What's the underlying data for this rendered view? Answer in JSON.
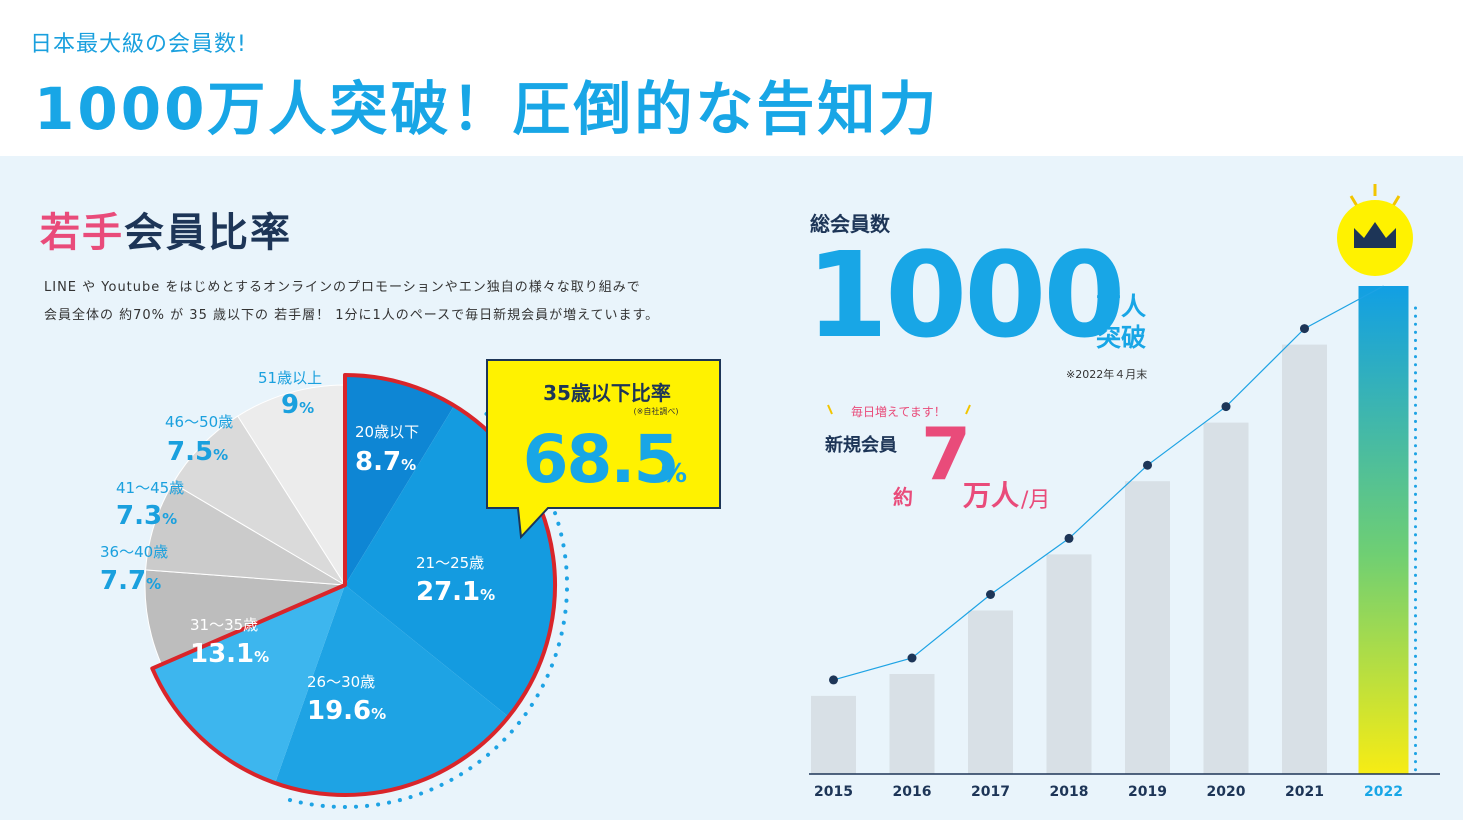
{
  "header": {
    "subtitle": "日本最大級の会員数!",
    "title": "1000万人突破！圧倒的な告知力"
  },
  "young": {
    "title_accent": "若手",
    "title_rest": "会員比率",
    "description_line1": "LINE や Youtube をはじめとするオンラインのプロモーションやエン独自の様々な取り組みで",
    "description_line2": "会員全体の 約70% が 35 歳以下の 若手層！ 1分に1人のペースで毎日新規会員が増えています。",
    "callout_label": "35歳以下比率",
    "callout_note": "(※自社調べ)",
    "callout_value": "68.5",
    "callout_unit": "%"
  },
  "total": {
    "label": "総会員数",
    "big_number": "1000",
    "unit_line1": "万人",
    "unit_line2": "突破",
    "note": "※2022年４月末",
    "daily_label": "毎日増えてます！",
    "new_label": "新規会員",
    "approx": "約",
    "new_number": "7",
    "new_unit": "万人",
    "new_per": "/月"
  },
  "colors": {
    "accent_blue": "#18a6e6",
    "accent_pink": "#e94b7a",
    "navy": "#1d3557",
    "callout_yellow": "#fff200",
    "outline_red": "#d9252a"
  },
  "chart_data": [
    {
      "type": "pie",
      "unit": "%",
      "slices": [
        {
          "label": "20歳以下",
          "value": 8.7,
          "value_text": "8.7",
          "color": "#0e86d4"
        },
        {
          "label": "21〜25歳",
          "value": 27.1,
          "value_text": "27.1",
          "color": "#149be0"
        },
        {
          "label": "26〜30歳",
          "value": 19.6,
          "value_text": "19.6",
          "color": "#1ea3e4"
        },
        {
          "label": "31〜35歳",
          "value": 13.1,
          "value_text": "13.1",
          "color": "#3db6ee"
        },
        {
          "label": "36〜40歳",
          "value": 7.7,
          "value_text": "7.7",
          "color": "#bdbdbd"
        },
        {
          "label": "41〜45歳",
          "value": 7.3,
          "value_text": "7.3",
          "color": "#cbcbcb"
        },
        {
          "label": "46〜50歳",
          "value": 7.5,
          "value_text": "7.5",
          "color": "#dadada"
        },
        {
          "label": "51歳以上",
          "value": 9,
          "value_text": "9",
          "color": "#ececec"
        }
      ]
    },
    {
      "type": "bar",
      "categories": [
        "2015",
        "2016",
        "2017",
        "2018",
        "2019",
        "2020",
        "2021",
        "2022"
      ],
      "values": [
        160,
        205,
        335,
        450,
        600,
        720,
        880,
        1000
      ],
      "trend_line": true
    }
  ]
}
